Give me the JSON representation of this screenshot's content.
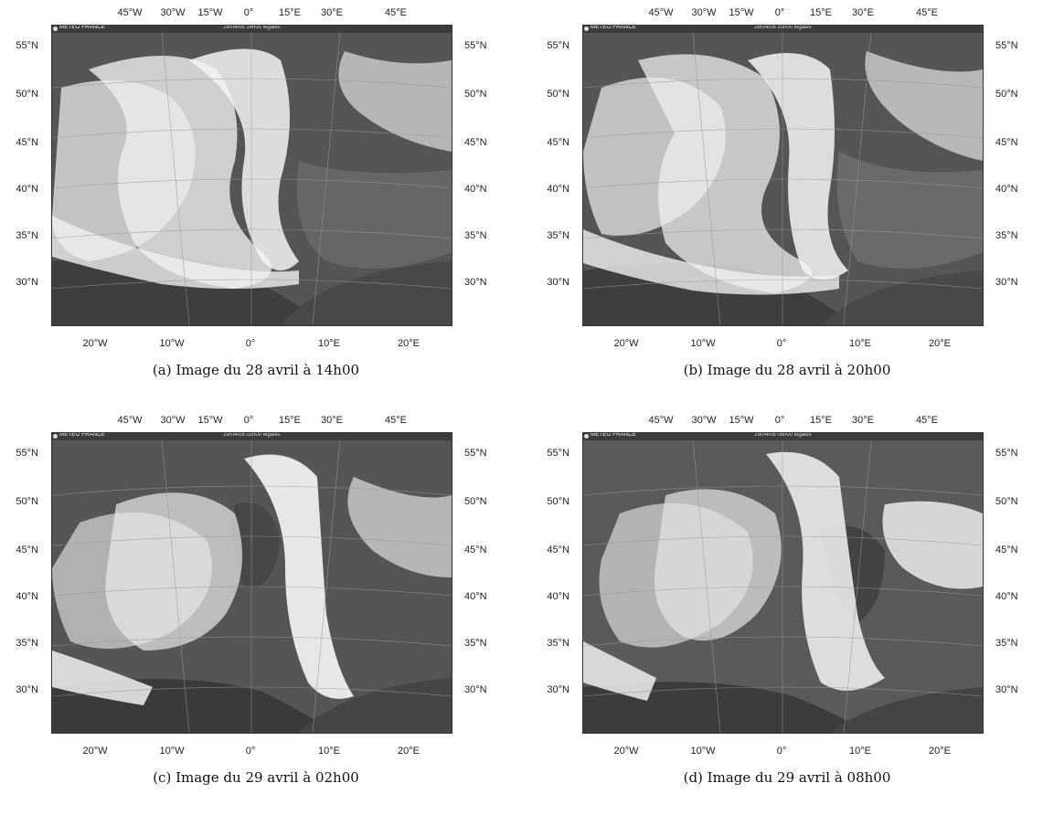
{
  "axes": {
    "top_ticks": [
      "45°W",
      "30°W",
      "15°W",
      "0°",
      "15°E",
      "30°E",
      "45°E"
    ],
    "bottom_ticks": [
      "20°W",
      "10°W",
      "0°",
      "10°E",
      "20°E"
    ],
    "lat_ticks": [
      "55°N",
      "50°N",
      "45°N",
      "40°N",
      "35°N",
      "30°N"
    ]
  },
  "logo": "METEO FRANCE",
  "panels": [
    {
      "id": "a",
      "timestamp": "28/04/08 14h00 légales",
      "caption": "(a) Image du 28 avril à 14h00"
    },
    {
      "id": "b",
      "timestamp": "28/04/08 20h00 légales",
      "caption": "(b) Image du 28 avril à 20h00"
    },
    {
      "id": "c",
      "timestamp": "29/04/08 02h00 légales",
      "caption": "(c) Image du 29 avril à 02h00"
    },
    {
      "id": "d",
      "timestamp": "29/04/08 08h00 légales",
      "caption": "(d) Image du 29 avril à 08h00"
    }
  ],
  "colors": {
    "background": "#ffffff",
    "cloud": "#f2f2f2",
    "sea": "#4a4a4a",
    "land": "#6a6a6a",
    "graticule": "#8a8a8a"
  }
}
